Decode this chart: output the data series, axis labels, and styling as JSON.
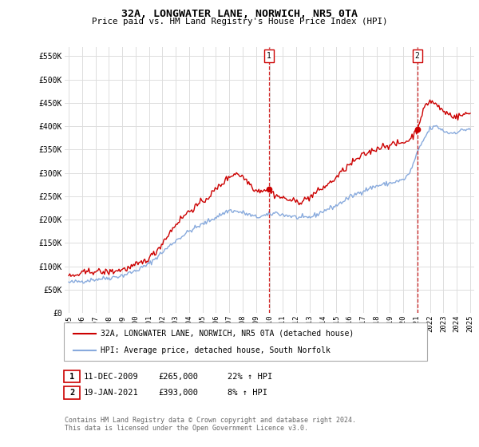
{
  "title": "32A, LONGWATER LANE, NORWICH, NR5 0TA",
  "subtitle": "Price paid vs. HM Land Registry's House Price Index (HPI)",
  "ylabel_ticks": [
    "£0",
    "£50K",
    "£100K",
    "£150K",
    "£200K",
    "£250K",
    "£300K",
    "£350K",
    "£400K",
    "£450K",
    "£500K",
    "£550K"
  ],
  "ytick_vals": [
    0,
    50000,
    100000,
    150000,
    200000,
    250000,
    300000,
    350000,
    400000,
    450000,
    500000,
    550000
  ],
  "ylim": [
    0,
    570000
  ],
  "xmin_year": 1995,
  "xmax_year": 2025,
  "xtick_years": [
    1995,
    1996,
    1997,
    1998,
    1999,
    2000,
    2001,
    2002,
    2003,
    2004,
    2005,
    2006,
    2007,
    2008,
    2009,
    2010,
    2011,
    2012,
    2013,
    2014,
    2015,
    2016,
    2017,
    2018,
    2019,
    2020,
    2021,
    2022,
    2023,
    2024,
    2025
  ],
  "marker1_x": 2009.95,
  "marker1_y": 265000,
  "marker1_label": "1",
  "marker1_date": "11-DEC-2009",
  "marker1_price": "£265,000",
  "marker1_hpi": "22% ↑ HPI",
  "marker2_x": 2021.05,
  "marker2_y": 393000,
  "marker2_label": "2",
  "marker2_date": "19-JAN-2021",
  "marker2_price": "£393,000",
  "marker2_hpi": "8% ↑ HPI",
  "vline1_x": 2009.95,
  "vline2_x": 2021.05,
  "line1_color": "#cc0000",
  "line2_color": "#88aadd",
  "vline_color": "#cc0000",
  "grid_color": "#dddddd",
  "background_color": "#ffffff",
  "legend_label1": "32A, LONGWATER LANE, NORWICH, NR5 0TA (detached house)",
  "legend_label2": "HPI: Average price, detached house, South Norfolk",
  "footer": "Contains HM Land Registry data © Crown copyright and database right 2024.\nThis data is licensed under the Open Government Licence v3.0."
}
